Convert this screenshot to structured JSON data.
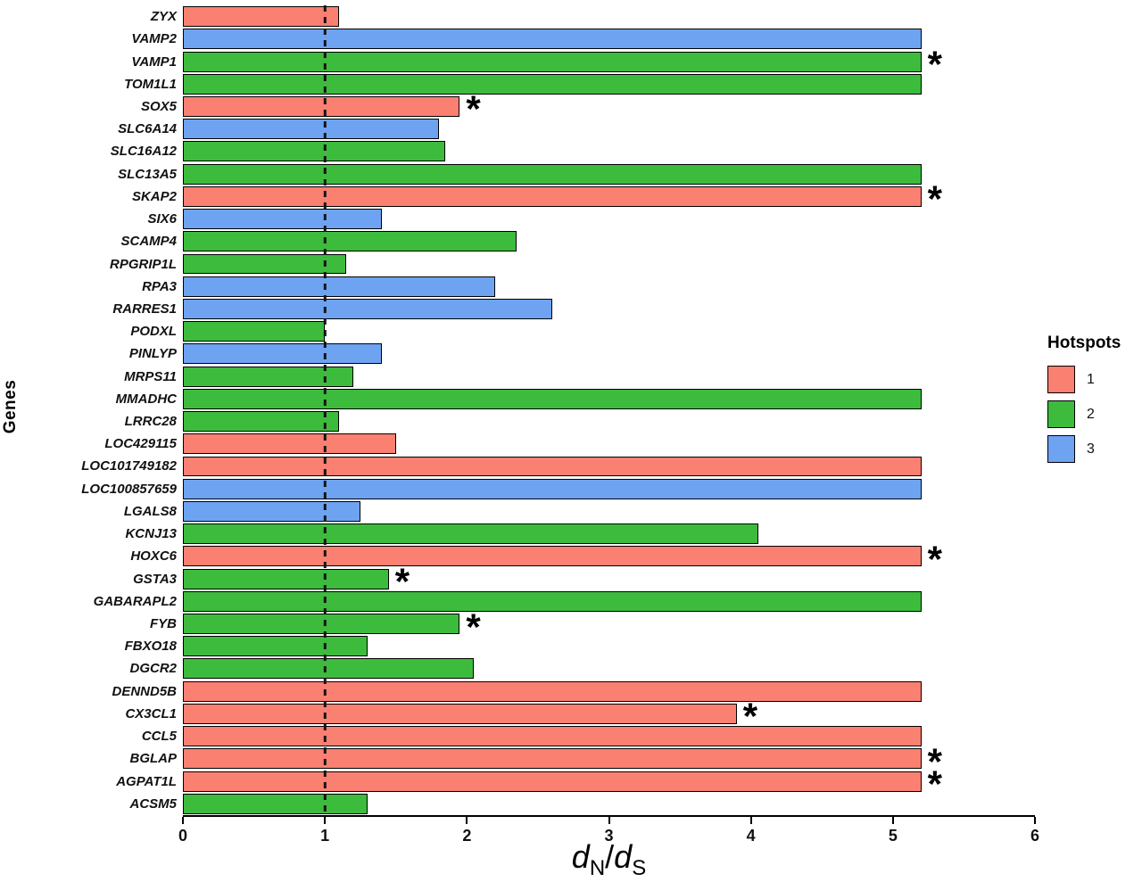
{
  "figure": {
    "ylabel": "Genes",
    "xlabel_parts": {
      "d1": "d",
      "sub1": "N",
      "slash": "/",
      "d2": "d",
      "sub2": "S"
    },
    "legend": {
      "title": "Hotspots",
      "items": [
        {
          "label": "1",
          "color": "#FA8072"
        },
        {
          "label": "2",
          "color": "#3DBB3D"
        },
        {
          "label": "3",
          "color": "#6EA3F2"
        }
      ]
    }
  },
  "chart_data": {
    "type": "bar",
    "orientation": "horizontal",
    "title": "",
    "xlabel": "dN/dS",
    "ylabel": "Genes",
    "xlim": [
      0,
      6
    ],
    "x_ticks": [
      0,
      1,
      2,
      3,
      4,
      5,
      6
    ],
    "reference_line_x": 1,
    "grid": false,
    "legend_position": "right",
    "legend_title": "Hotspots",
    "groups": {
      "1": "#FA8072",
      "2": "#3DBB3D",
      "3": "#6EA3F2"
    },
    "rows": [
      {
        "gene": "ZYX",
        "value": 1.1,
        "hotspot": "1",
        "significant": false
      },
      {
        "gene": "VAMP2",
        "value": 5.2,
        "hotspot": "3",
        "significant": false
      },
      {
        "gene": "VAMP1",
        "value": 5.2,
        "hotspot": "2",
        "significant": true
      },
      {
        "gene": "TOM1L1",
        "value": 5.2,
        "hotspot": "2",
        "significant": false
      },
      {
        "gene": "SOX5",
        "value": 1.95,
        "hotspot": "1",
        "significant": true
      },
      {
        "gene": "SLC6A14",
        "value": 1.8,
        "hotspot": "3",
        "significant": false
      },
      {
        "gene": "SLC16A12",
        "value": 1.85,
        "hotspot": "2",
        "significant": false
      },
      {
        "gene": "SLC13A5",
        "value": 5.2,
        "hotspot": "2",
        "significant": false
      },
      {
        "gene": "SKAP2",
        "value": 5.2,
        "hotspot": "1",
        "significant": true
      },
      {
        "gene": "SIX6",
        "value": 1.4,
        "hotspot": "3",
        "significant": false
      },
      {
        "gene": "SCAMP4",
        "value": 2.35,
        "hotspot": "2",
        "significant": false
      },
      {
        "gene": "RPGRIP1L",
        "value": 1.15,
        "hotspot": "2",
        "significant": false
      },
      {
        "gene": "RPA3",
        "value": 2.2,
        "hotspot": "3",
        "significant": false
      },
      {
        "gene": "RARRES1",
        "value": 2.6,
        "hotspot": "3",
        "significant": false
      },
      {
        "gene": "PODXL",
        "value": 1.0,
        "hotspot": "2",
        "significant": false
      },
      {
        "gene": "PINLYP",
        "value": 1.4,
        "hotspot": "3",
        "significant": false
      },
      {
        "gene": "MRPS11",
        "value": 1.2,
        "hotspot": "2",
        "significant": false
      },
      {
        "gene": "MMADHC",
        "value": 5.2,
        "hotspot": "2",
        "significant": false
      },
      {
        "gene": "LRRC28",
        "value": 1.1,
        "hotspot": "2",
        "significant": false
      },
      {
        "gene": "LOC429115",
        "value": 1.5,
        "hotspot": "1",
        "significant": false
      },
      {
        "gene": "LOC101749182",
        "value": 5.2,
        "hotspot": "1",
        "significant": false
      },
      {
        "gene": "LOC100857659",
        "value": 5.2,
        "hotspot": "3",
        "significant": false
      },
      {
        "gene": "LGALS8",
        "value": 1.25,
        "hotspot": "3",
        "significant": false
      },
      {
        "gene": "KCNJ13",
        "value": 4.05,
        "hotspot": "2",
        "significant": false
      },
      {
        "gene": "HOXC6",
        "value": 5.2,
        "hotspot": "1",
        "significant": true
      },
      {
        "gene": "GSTA3",
        "value": 1.45,
        "hotspot": "2",
        "significant": true
      },
      {
        "gene": "GABARAPL2",
        "value": 5.2,
        "hotspot": "2",
        "significant": false
      },
      {
        "gene": "FYB",
        "value": 1.95,
        "hotspot": "2",
        "significant": true
      },
      {
        "gene": "FBXO18",
        "value": 1.3,
        "hotspot": "2",
        "significant": false
      },
      {
        "gene": "DGCR2",
        "value": 2.05,
        "hotspot": "2",
        "significant": false
      },
      {
        "gene": "DENND5B",
        "value": 5.2,
        "hotspot": "1",
        "significant": false
      },
      {
        "gene": "CX3CL1",
        "value": 3.9,
        "hotspot": "1",
        "significant": true
      },
      {
        "gene": "CCL5",
        "value": 5.2,
        "hotspot": "1",
        "significant": false
      },
      {
        "gene": "BGLAP",
        "value": 5.2,
        "hotspot": "1",
        "significant": true
      },
      {
        "gene": "AGPAT1L",
        "value": 5.2,
        "hotspot": "1",
        "significant": true
      },
      {
        "gene": "ACSM5",
        "value": 1.3,
        "hotspot": "2",
        "significant": false
      }
    ]
  }
}
